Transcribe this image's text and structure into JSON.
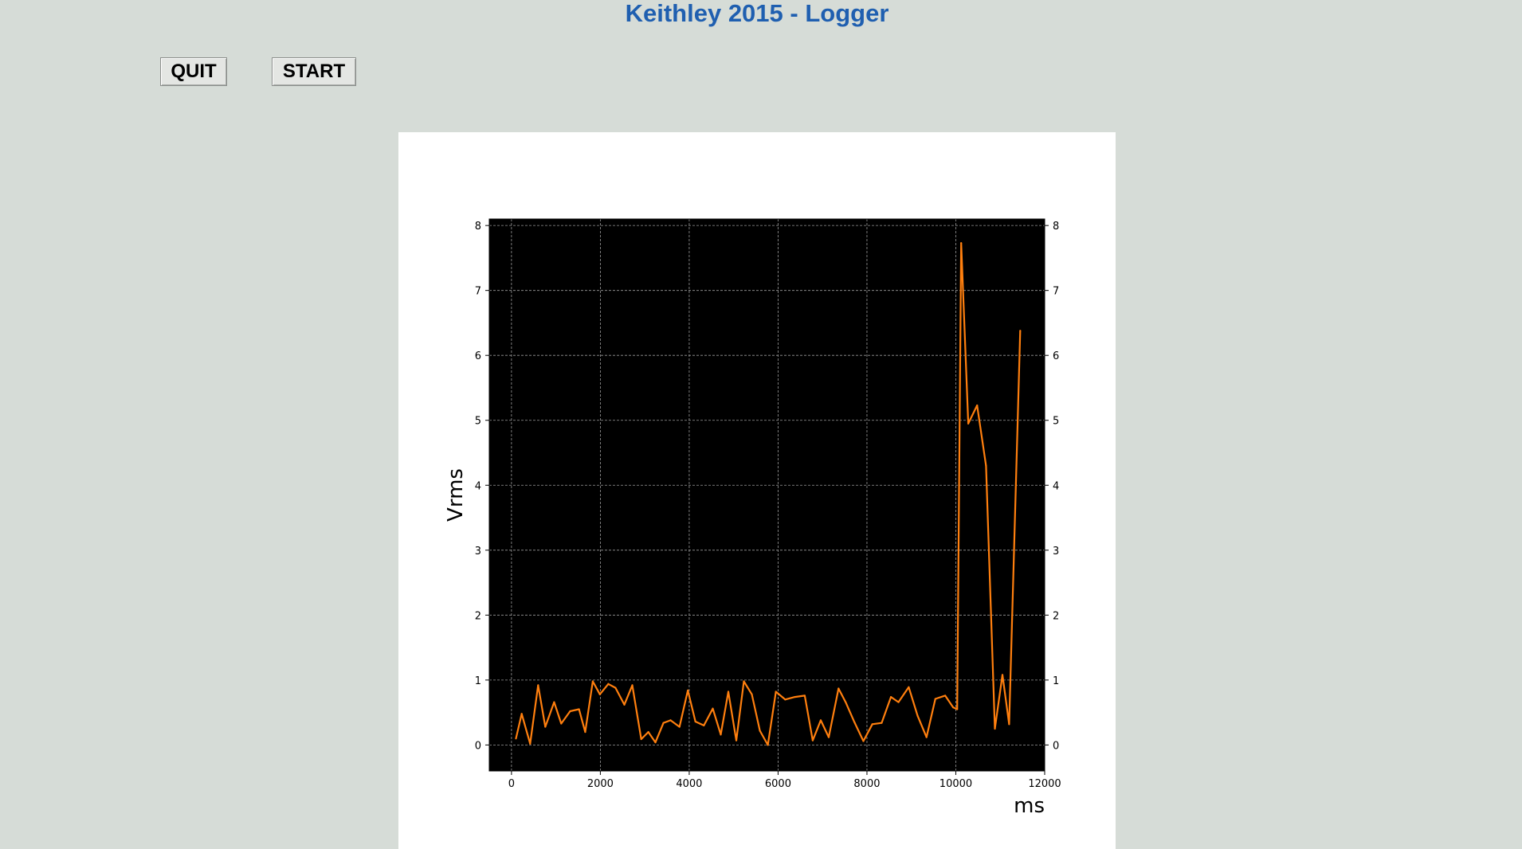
{
  "window": {
    "title": "Keithley 2015 - Logger"
  },
  "toolbar": {
    "quit_label": "QUIT",
    "start_label": "START"
  },
  "colors": {
    "title": "#1f5fb0",
    "background": "#d6dcd7",
    "plot_background": "#000000",
    "series_line": "#ff7f0e",
    "grid": "#9a9a9a"
  },
  "chart_data": {
    "type": "line",
    "title": "",
    "xlabel": "ms",
    "ylabel": "Vrms",
    "xlim": [
      -500,
      12000
    ],
    "ylim": [
      -0.4,
      8.1
    ],
    "xticks": [
      0,
      2000,
      4000,
      6000,
      8000,
      10000,
      12000
    ],
    "yticks": [
      0,
      1,
      2,
      3,
      4,
      5,
      6,
      7,
      8
    ],
    "grid": true,
    "grid_style": "dashed",
    "right_axis_ticks": true,
    "legend": "none",
    "series": [
      {
        "color": "#ff7f0e",
        "x": [
          100,
          230,
          420,
          600,
          760,
          960,
          1120,
          1320,
          1520,
          1660,
          1830,
          1990,
          2180,
          2340,
          2540,
          2720,
          2920,
          3080,
          3240,
          3420,
          3580,
          3780,
          3970,
          4140,
          4330,
          4530,
          4710,
          4880,
          5060,
          5230,
          5410,
          5590,
          5770,
          5950,
          6160,
          6380,
          6600,
          6780,
          6960,
          7140,
          7360,
          7520,
          7720,
          7920,
          8120,
          8330,
          8540,
          8710,
          8940,
          9140,
          9340,
          9540,
          9760,
          9940,
          10030,
          10120,
          10280,
          10480,
          10680,
          10880,
          11050,
          11200,
          11450
        ],
        "y": [
          0.1,
          0.48,
          0.02,
          0.92,
          0.28,
          0.66,
          0.33,
          0.52,
          0.55,
          0.2,
          0.98,
          0.78,
          0.94,
          0.88,
          0.62,
          0.92,
          0.09,
          0.2,
          0.04,
          0.34,
          0.38,
          0.28,
          0.84,
          0.36,
          0.3,
          0.56,
          0.16,
          0.82,
          0.07,
          0.98,
          0.78,
          0.22,
          0.0,
          0.82,
          0.7,
          0.74,
          0.76,
          0.07,
          0.38,
          0.12,
          0.87,
          0.66,
          0.35,
          0.06,
          0.32,
          0.34,
          0.74,
          0.66,
          0.89,
          0.45,
          0.12,
          0.71,
          0.76,
          0.58,
          0.55,
          7.73,
          4.95,
          5.23,
          4.3,
          0.25,
          1.08,
          0.32,
          6.38
        ]
      }
    ]
  }
}
